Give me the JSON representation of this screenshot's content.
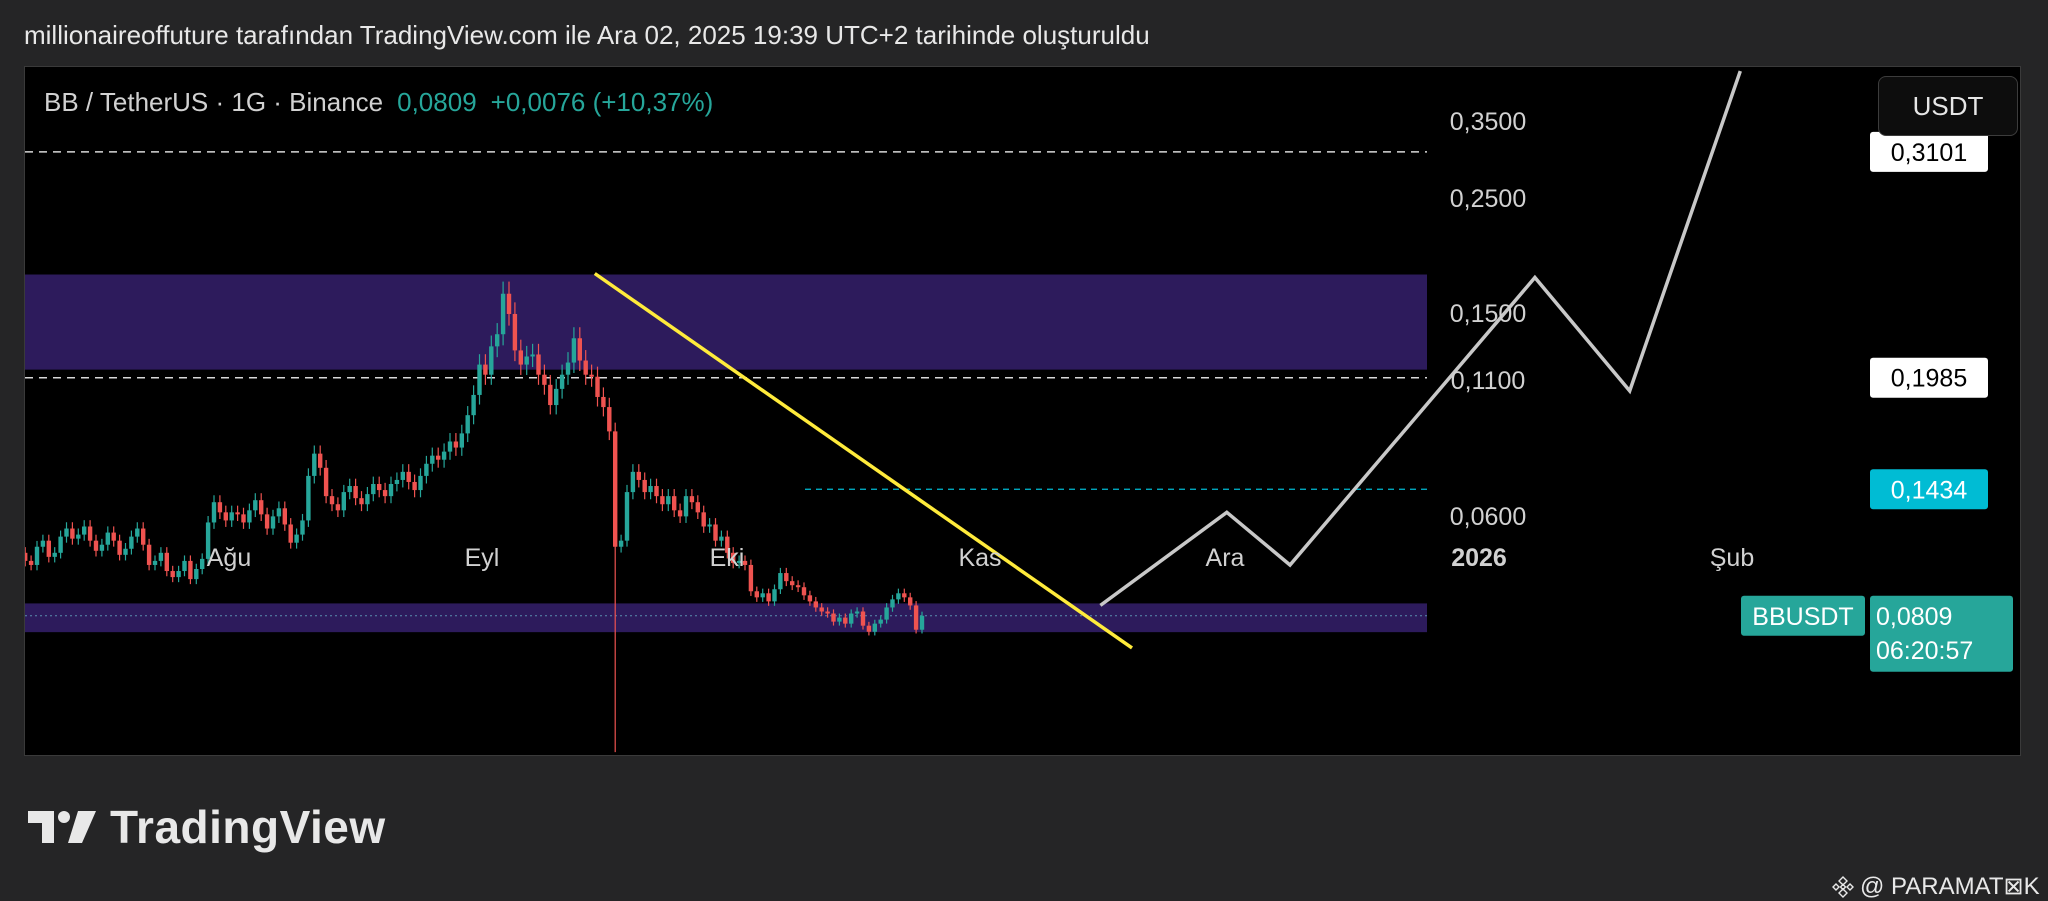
{
  "page": {
    "title": "millionaireoffuture tarafından TradingView.com ile Ara 02, 2025 19:39 UTC+2 tarihinde oluşturuldu"
  },
  "symbol_bar": {
    "name": "BB / TetherUS · 1G · Binance",
    "price": "0,0809",
    "change": "+0,0076 (+10,37%)"
  },
  "currency_button": {
    "label": "USDT"
  },
  "price_axis": {
    "ticks": [
      "0,3500",
      "0,2500",
      "0,1500",
      "0,1100",
      "0,0600"
    ]
  },
  "price_tags": {
    "level_high": "0,3101",
    "level_mid": "0,1985",
    "level_low": "0,1434",
    "current_symbol": "BBUSDT",
    "current_price": "0,0809",
    "countdown": "06:20:57"
  },
  "time_axis": {
    "labels": [
      "Ağu",
      "Eyl",
      "Eki",
      "Kas",
      "Ara",
      "2026",
      "Şub"
    ]
  },
  "colors": {
    "background": "#000000",
    "up_candle": "#26a69a",
    "down_candle": "#ef5350",
    "zone": "#2d1b5c",
    "trendline": "#ffeb3b",
    "projection": "#c8c8c8",
    "cyan_level": "#00bcd4",
    "current_tag": "#26a69a"
  },
  "branding": {
    "logo_text": "TradingView",
    "watermark": "@ PARAMAT⊠K"
  },
  "chart_data": {
    "type": "candlestick",
    "symbol": "BB / TetherUS",
    "interval": "1G",
    "exchange": "Binance",
    "last_price": 0.0809,
    "horizontal_levels": [
      0.3101,
      0.1985,
      0.1434
    ],
    "current_price_line": 0.0809,
    "zones": [
      {
        "from": 0.2025,
        "to": 0.2495
      },
      {
        "from": 0.0728,
        "to": 0.087
      }
    ],
    "trendline": {
      "from": {
        "date": "2025-09-25",
        "price": 0.25
      },
      "to": {
        "date": "2025-12-02",
        "price": 0.065
      }
    },
    "projection_path": [
      {
        "date": "2025-11-28",
        "price": 0.086
      },
      {
        "date": "2025-12-14",
        "price": 0.132
      },
      {
        "date": "2025-12-22",
        "price": 0.106
      },
      {
        "date": "2026-01-22",
        "price": 0.248
      },
      {
        "date": "2026-02-03",
        "price": 0.192
      },
      {
        "date": "2026-02-17",
        "price": 0.35
      }
    ],
    "closes": [
      0.086,
      0.098,
      0.103,
      0.105,
      0.112,
      0.108,
      0.106,
      0.115,
      0.118,
      0.11,
      0.112,
      0.12,
      0.124,
      0.119,
      0.121,
      0.125,
      0.118,
      0.113,
      0.116,
      0.122,
      0.118,
      0.111,
      0.114,
      0.12,
      0.124,
      0.116,
      0.106,
      0.108,
      0.112,
      0.103,
      0.1,
      0.103,
      0.108,
      0.099,
      0.104,
      0.109,
      0.127,
      0.137,
      0.132,
      0.128,
      0.132,
      0.131,
      0.127,
      0.133,
      0.138,
      0.131,
      0.124,
      0.13,
      0.134,
      0.126,
      0.117,
      0.121,
      0.128,
      0.15,
      0.161,
      0.154,
      0.14,
      0.136,
      0.133,
      0.142,
      0.145,
      0.139,
      0.136,
      0.141,
      0.146,
      0.143,
      0.14,
      0.146,
      0.148,
      0.152,
      0.147,
      0.143,
      0.15,
      0.156,
      0.16,
      0.158,
      0.162,
      0.167,
      0.164,
      0.171,
      0.18,
      0.19,
      0.205,
      0.2,
      0.214,
      0.22,
      0.24,
      0.23,
      0.212,
      0.205,
      0.209,
      0.21,
      0.2,
      0.195,
      0.185,
      0.193,
      0.2,
      0.206,
      0.218,
      0.207,
      0.2,
      0.199,
      0.189,
      0.184,
      0.172,
      0.115,
      0.118,
      0.142,
      0.152,
      0.148,
      0.142,
      0.145,
      0.14,
      0.136,
      0.14,
      0.133,
      0.13,
      0.14,
      0.137,
      0.132,
      0.125,
      0.126,
      0.118,
      0.12,
      0.112,
      0.107,
      0.108,
      0.106,
      0.093,
      0.09,
      0.092,
      0.088,
      0.094,
      0.102,
      0.098,
      0.096,
      0.095,
      0.091,
      0.088,
      0.085,
      0.083,
      0.082,
      0.078,
      0.08,
      0.077,
      0.082,
      0.083,
      0.076,
      0.073,
      0.077,
      0.079,
      0.085,
      0.089,
      0.092,
      0.09,
      0.086,
      0.074,
      0.0809
    ]
  }
}
